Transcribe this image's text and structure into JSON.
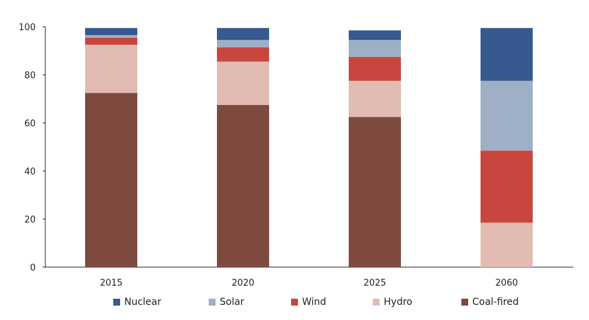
{
  "chart_data": {
    "type": "bar",
    "stacked": true,
    "categories": [
      "2015",
      "2020",
      "2025",
      "2060"
    ],
    "series": [
      {
        "name": "Coal-fired",
        "color": "#7E4A40",
        "values": [
          72.5,
          67.5,
          62.5,
          0
        ]
      },
      {
        "name": "Hydro",
        "color": "#E2BCB2",
        "values": [
          20,
          18,
          15,
          18.5
        ]
      },
      {
        "name": "Wind",
        "color": "#C7473E",
        "values": [
          3,
          6,
          10,
          30
        ]
      },
      {
        "name": "Solar",
        "color": "#9FB0C6",
        "values": [
          1,
          3,
          7,
          29
        ]
      },
      {
        "name": "Nuclear",
        "color": "#365A8F",
        "values": [
          3,
          5,
          4,
          22
        ]
      }
    ],
    "legend_order": [
      "Nuclear",
      "Solar",
      "Wind",
      "Hydro",
      "Coal-fired"
    ],
    "y_ticks": [
      "0",
      "20",
      "40",
      "60",
      "80",
      "100"
    ],
    "ylim": [
      0,
      100
    ],
    "grid": false,
    "legend_position": "bottom"
  }
}
